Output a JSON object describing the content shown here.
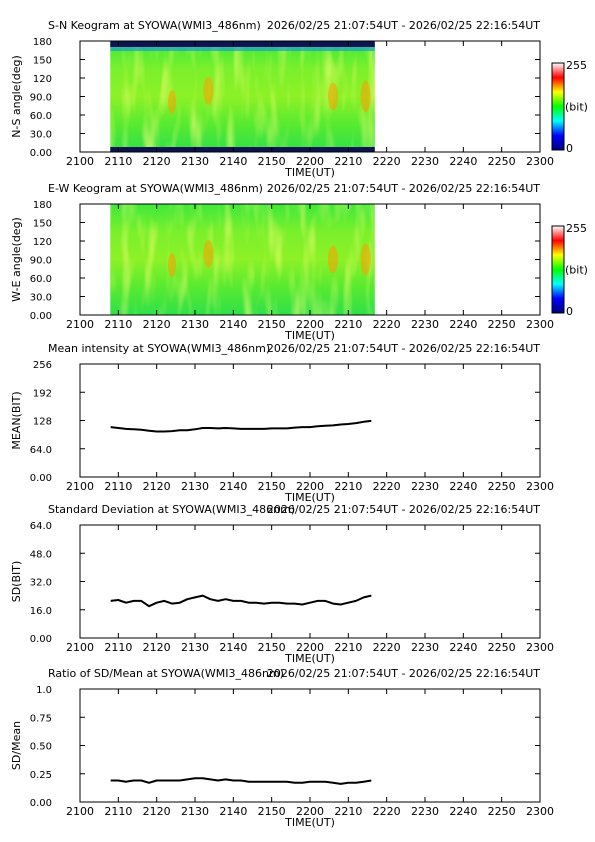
{
  "page": {
    "time_label": "2026/02/25 21:07:54UT - 2026/02/25 22:16:54UT",
    "xlabel": "TIME(UT)",
    "colorbar": {
      "max_label": "255",
      "min_label": "0",
      "unit_label": "(bit)"
    }
  },
  "chart_data": [
    {
      "type": "heatmap",
      "title": "S-N Keogram at SYOWA(WMI3_486nm)",
      "ylabel": "N-S angle(deg)",
      "x_ticks": [
        "2100",
        "2110",
        "2120",
        "2130",
        "2140",
        "2150",
        "2200",
        "2210",
        "2220",
        "2230",
        "2240",
        "2250",
        "2300"
      ],
      "y_ticks": [
        "0.00",
        "30.0",
        "60.0",
        "90.0",
        "120",
        "150",
        "180"
      ],
      "ylim": [
        0,
        180
      ],
      "data_time_range": [
        "21:07:54",
        "22:16:54"
      ],
      "colorscale": [
        "#000080",
        "#0000ff",
        "#00ffff",
        "#00ff00",
        "#ffff00",
        "#ff0000",
        "#ffffff"
      ],
      "background_level": "green (~110 bit)",
      "dark_band_at_edges": true
    },
    {
      "type": "heatmap",
      "title": "E-W Keogram at SYOWA(WMI3_486nm)",
      "ylabel": "W-E angle(deg)",
      "x_ticks": [
        "2100",
        "2110",
        "2120",
        "2130",
        "2140",
        "2150",
        "2200",
        "2210",
        "2220",
        "2230",
        "2240",
        "2250",
        "2300"
      ],
      "y_ticks": [
        "0.00",
        "30.0",
        "60.0",
        "90.0",
        "120",
        "150",
        "180"
      ],
      "ylim": [
        0,
        180
      ],
      "data_time_range": [
        "21:07:54",
        "22:16:54"
      ],
      "colorscale": [
        "#000080",
        "#0000ff",
        "#00ffff",
        "#00ff00",
        "#ffff00",
        "#ff0000",
        "#ffffff"
      ],
      "background_level": "green (~110 bit)",
      "dark_band_at_edges": false
    },
    {
      "type": "line",
      "title": "Mean intensity at SYOWA(WMI3_486nm)",
      "ylabel": "MEAN(BIT)",
      "x_ticks": [
        "2100",
        "2110",
        "2120",
        "2130",
        "2140",
        "2150",
        "2200",
        "2210",
        "2220",
        "2230",
        "2240",
        "2250",
        "2300"
      ],
      "y_ticks": [
        "0.00",
        "64.0",
        "128",
        "192",
        "256"
      ],
      "ylim": [
        0,
        256
      ],
      "x": [
        8,
        10,
        12,
        14,
        16,
        18,
        20,
        22,
        24,
        26,
        28,
        30,
        32,
        34,
        36,
        38,
        40,
        42,
        44,
        46,
        48,
        50,
        52,
        54,
        56,
        58,
        60,
        62,
        64,
        66,
        68,
        70,
        72,
        74,
        76
      ],
      "values": [
        113,
        111,
        109,
        108,
        107,
        105,
        103,
        103,
        104,
        106,
        106,
        108,
        111,
        111,
        110,
        111,
        110,
        109,
        109,
        109,
        109,
        110,
        110,
        110,
        112,
        113,
        113,
        115,
        116,
        117,
        119,
        120,
        122,
        125,
        127
      ]
    },
    {
      "type": "line",
      "title": "Standard Deviation at SYOWA(WMI3_486nm)",
      "ylabel": "SD(BIT)",
      "x_ticks": [
        "2100",
        "2110",
        "2120",
        "2130",
        "2140",
        "2150",
        "2200",
        "2210",
        "2220",
        "2230",
        "2240",
        "2250",
        "2300"
      ],
      "y_ticks": [
        "0.00",
        "16.0",
        "32.0",
        "48.0",
        "64.0"
      ],
      "ylim": [
        0,
        64
      ],
      "x": [
        8,
        10,
        12,
        14,
        16,
        18,
        20,
        22,
        24,
        26,
        28,
        30,
        32,
        34,
        36,
        38,
        40,
        42,
        44,
        46,
        48,
        50,
        52,
        54,
        56,
        58,
        60,
        62,
        64,
        66,
        68,
        70,
        72,
        74,
        76
      ],
      "values": [
        21,
        21.5,
        20,
        21,
        21,
        18,
        20,
        21,
        19.5,
        20,
        22,
        23,
        24,
        22,
        21,
        22,
        21,
        21,
        20,
        20,
        19.5,
        20,
        20,
        19.5,
        19.5,
        19,
        20,
        21,
        21,
        19.5,
        19,
        20,
        21,
        23,
        24
      ]
    },
    {
      "type": "line",
      "title": "Ratio of SD/Mean at SYOWA(WMI3_486nm)",
      "ylabel": "SD/Mean",
      "x_ticks": [
        "2100",
        "2110",
        "2120",
        "2130",
        "2140",
        "2150",
        "2200",
        "2210",
        "2220",
        "2230",
        "2240",
        "2250",
        "2300"
      ],
      "y_ticks": [
        "0.00",
        "0.25",
        "0.50",
        "0.75",
        "1.0"
      ],
      "ylim": [
        0,
        1
      ],
      "x": [
        8,
        10,
        12,
        14,
        16,
        18,
        20,
        22,
        24,
        26,
        28,
        30,
        32,
        34,
        36,
        38,
        40,
        42,
        44,
        46,
        48,
        50,
        52,
        54,
        56,
        58,
        60,
        62,
        64,
        66,
        68,
        70,
        72,
        74,
        76
      ],
      "values": [
        0.19,
        0.19,
        0.18,
        0.19,
        0.19,
        0.17,
        0.19,
        0.19,
        0.19,
        0.19,
        0.2,
        0.21,
        0.21,
        0.2,
        0.19,
        0.2,
        0.19,
        0.19,
        0.18,
        0.18,
        0.18,
        0.18,
        0.18,
        0.18,
        0.17,
        0.17,
        0.18,
        0.18,
        0.18,
        0.17,
        0.16,
        0.17,
        0.17,
        0.18,
        0.19
      ]
    }
  ]
}
